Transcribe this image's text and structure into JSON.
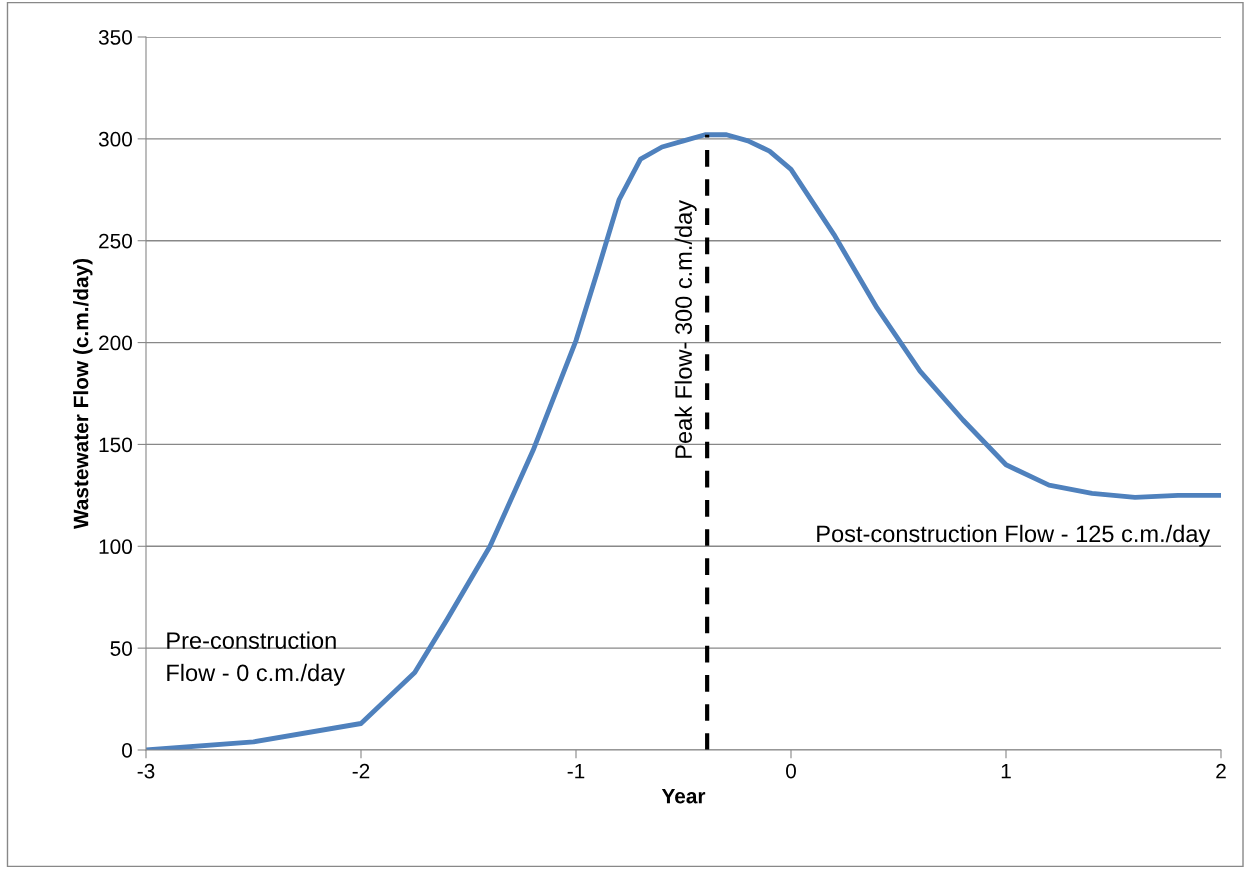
{
  "chart_data": {
    "type": "line",
    "xlabel": "Year",
    "ylabel": "Wastewater Flow (c.m./day)",
    "x": [
      -3,
      -2.5,
      -2,
      -1.75,
      -1.6,
      -1.4,
      -1.2,
      -1,
      -0.9,
      -0.8,
      -0.7,
      -0.6,
      -0.5,
      -0.4,
      -0.3,
      -0.2,
      -0.1,
      0,
      0.2,
      0.4,
      0.6,
      0.8,
      1,
      1.2,
      1.4,
      1.6,
      1.8,
      2
    ],
    "series": [
      {
        "color": "#4f81bd",
        "values": [
          0,
          4,
          13,
          38,
          64,
          100,
          147,
          201,
          235,
          270,
          290,
          296,
          299,
          302,
          302,
          299,
          294,
          285,
          253,
          217,
          186,
          162,
          140,
          130,
          126,
          124,
          125,
          125
        ]
      }
    ],
    "xlim": [
      -3,
      2
    ],
    "xticks": [
      -3,
      -2,
      -1,
      0,
      1,
      2
    ],
    "ylim": [
      0,
      350
    ],
    "yticks": [
      0,
      50,
      100,
      150,
      200,
      250,
      300,
      350
    ],
    "grid": "y",
    "marker": "none",
    "line_style": "solid",
    "ref_lines": [
      {
        "axis": "x",
        "value": -0.39,
        "label": "Peak Flow- 300 c.m./day",
        "color": "#000000",
        "line_style": "dashed"
      }
    ],
    "annotations": [
      "Pre-construction\nFlow - 0 c.m./day",
      "Post-construction Flow - 125 c.m./day"
    ]
  }
}
